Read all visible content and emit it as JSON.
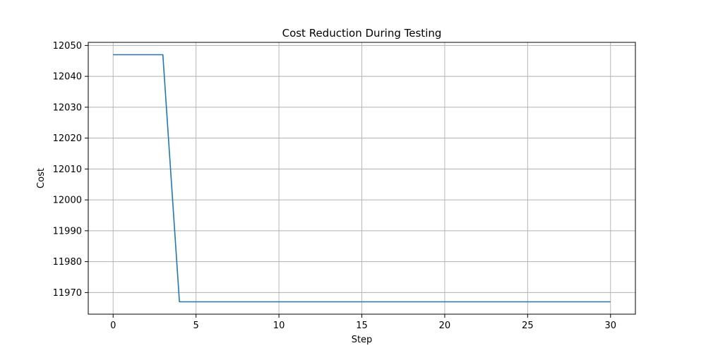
{
  "chart_data": {
    "type": "line",
    "title": "Cost Reduction During Testing",
    "xlabel": "Step",
    "ylabel": "Cost",
    "xlim": [
      -1.5,
      31.5
    ],
    "ylim": [
      11963,
      12051
    ],
    "xticks": [
      0,
      5,
      10,
      15,
      20,
      25,
      30
    ],
    "yticks": [
      11970,
      11980,
      11990,
      12000,
      12010,
      12020,
      12030,
      12040,
      12050
    ],
    "grid": true,
    "series": [
      {
        "color": "#1f77b4",
        "x": [
          0,
          1,
          2,
          3,
          4,
          5,
          6,
          7,
          8,
          9,
          10,
          11,
          12,
          13,
          14,
          15,
          16,
          17,
          18,
          19,
          20,
          21,
          22,
          23,
          24,
          25,
          26,
          27,
          28,
          29,
          30
        ],
        "y": [
          12047,
          12047,
          12047,
          12047,
          11967,
          11967,
          11967,
          11967,
          11967,
          11967,
          11967,
          11967,
          11967,
          11967,
          11967,
          11967,
          11967,
          11967,
          11967,
          11967,
          11967,
          11967,
          11967,
          11967,
          11967,
          11967,
          11967,
          11967,
          11967,
          11967,
          11967
        ]
      }
    ]
  }
}
